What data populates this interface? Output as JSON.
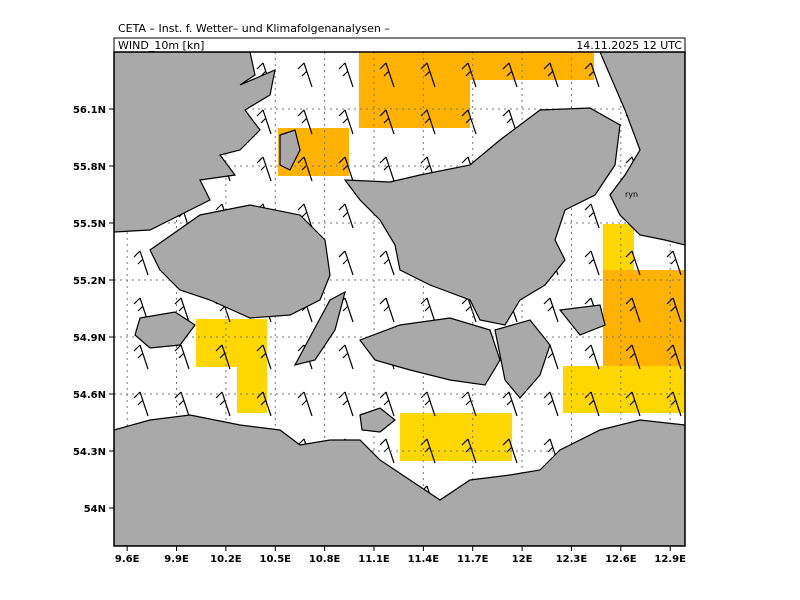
{
  "header": {
    "title": "CETA – Inst. f. Wetter– und Klimafolgenanalysen –",
    "variable": "WIND_10m [kn]",
    "valid_time": "14.11.2025 12 UTC"
  },
  "map": {
    "xlim": [
      9.52,
      12.99
    ],
    "ylim": [
      53.8,
      56.4
    ],
    "xticks": [
      {
        "value": 9.6,
        "label": "9.6E"
      },
      {
        "value": 9.9,
        "label": "9.9E"
      },
      {
        "value": 10.2,
        "label": "10.2E"
      },
      {
        "value": 10.5,
        "label": "10.5E"
      },
      {
        "value": 10.8,
        "label": "10.8E"
      },
      {
        "value": 11.1,
        "label": "11.1E"
      },
      {
        "value": 11.4,
        "label": "11.4E"
      },
      {
        "value": 11.7,
        "label": "11.7E"
      },
      {
        "value": 12,
        "label": "12E"
      },
      {
        "value": 12.3,
        "label": "12.3E"
      },
      {
        "value": 12.6,
        "label": "12.6E"
      },
      {
        "value": 12.9,
        "label": "12.9E"
      }
    ],
    "yticks": [
      {
        "value": 54,
        "label": "54N"
      },
      {
        "value": 54.3,
        "label": "54.3N"
      },
      {
        "value": 54.6,
        "label": "54.6N"
      },
      {
        "value": 54.9,
        "label": "54.9N"
      },
      {
        "value": 55.2,
        "label": "55.2N"
      },
      {
        "value": 55.5,
        "label": "55.5N"
      },
      {
        "value": 55.8,
        "label": "55.8N"
      },
      {
        "value": 56.1,
        "label": "56.1N"
      }
    ],
    "place_label": "ryn"
  }
}
